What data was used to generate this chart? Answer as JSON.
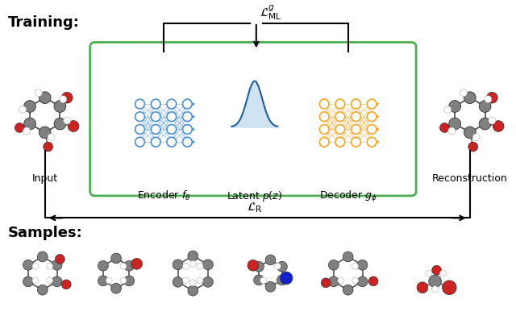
{
  "title_training": "Training:",
  "title_samples": "Samples:",
  "box_color": "#4CAF50",
  "encoder_color": "#4A90D9",
  "decoder_color": "#F5A623",
  "latent_color": "#4A90D9",
  "latent_fill": "#D0E8F5",
  "text_color": "#000000",
  "bg_color": "#ffffff",
  "label_encoder": "Encoder $f_{\\theta}$",
  "label_latent": "Latent $p(z)$",
  "label_decoder": "Decoder $g_{\\phi}$",
  "label_input": "Input",
  "label_reconstruction": "Reconstruction",
  "label_loss_ml": "$\\mathcal{L}^{g}_{\\mathrm{ML}}$",
  "label_loss_r": "$\\mathcal{L}_{\\mathrm{R}}$",
  "figsize": [
    6.4,
    3.97
  ],
  "dpi": 100
}
